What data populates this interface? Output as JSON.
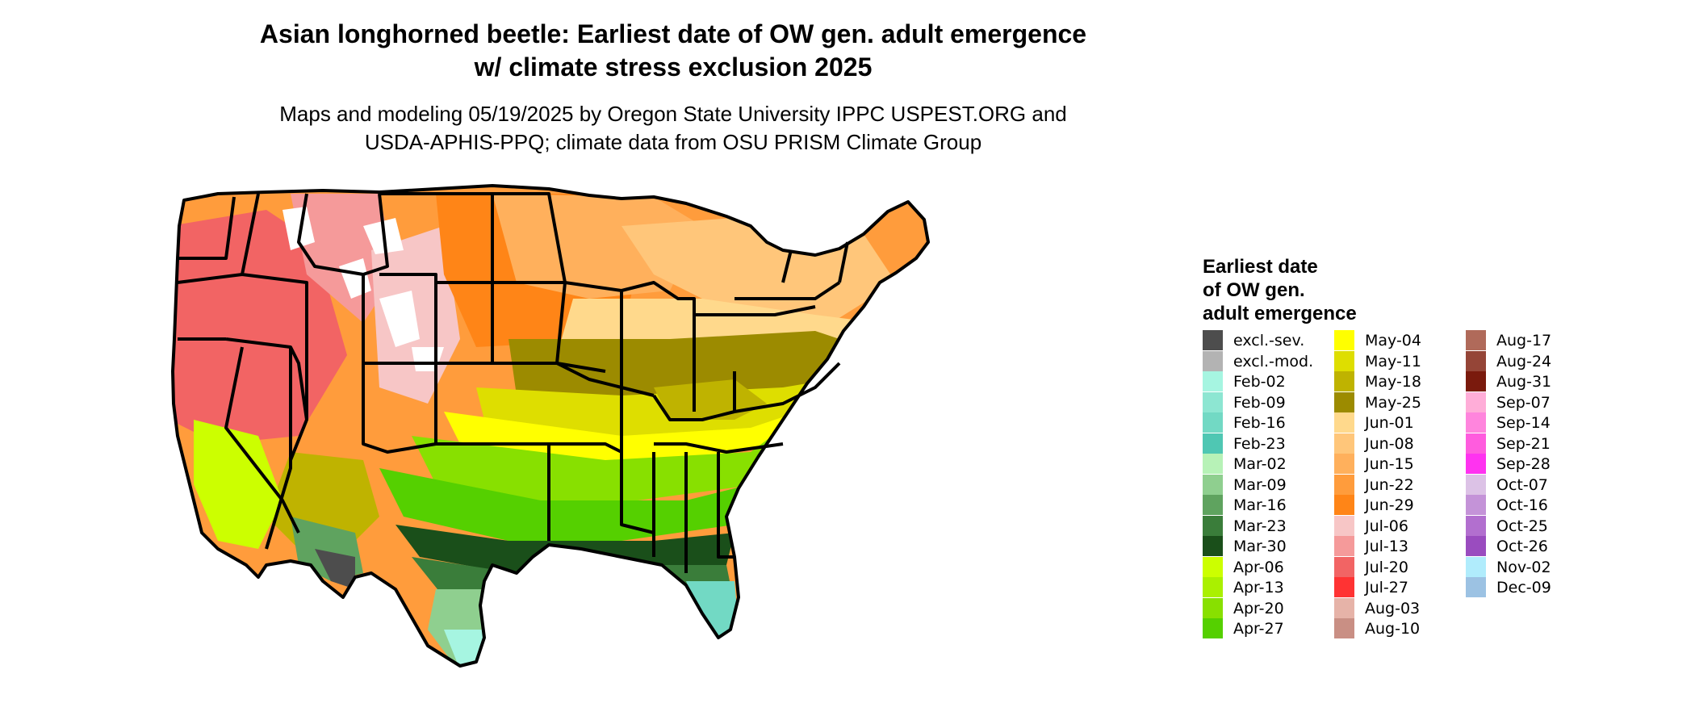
{
  "header": {
    "title_lines": [
      "Asian longhorned beetle: Earliest date of OW gen. adult emergence",
      "w/ climate stress exclusion 2025"
    ],
    "subtitle_lines": [
      "Maps and modeling 05/19/2025 by Oregon State University IPPC USPEST.ORG and",
      "USDA-APHIS-PPQ; climate data from OSU PRISM Climate Group"
    ]
  },
  "legend": {
    "title_lines": [
      "Earliest date",
      "of OW gen.",
      "adult emergence"
    ],
    "columns": [
      [
        {
          "label": "excl.-sev.",
          "color": "#4d4d4d"
        },
        {
          "label": "excl.-mod.",
          "color": "#b3b3b3"
        },
        {
          "label": "Feb-02",
          "color": "#a6f5e1"
        },
        {
          "label": "Feb-09",
          "color": "#8de6d2"
        },
        {
          "label": "Feb-16",
          "color": "#72d9c4"
        },
        {
          "label": "Feb-23",
          "color": "#4fc7b3"
        },
        {
          "label": "Mar-02",
          "color": "#b7f2b7"
        },
        {
          "label": "Mar-09",
          "color": "#8fcf8f"
        },
        {
          "label": "Mar-16",
          "color": "#5fa35f"
        },
        {
          "label": "Mar-23",
          "color": "#3a7d3a"
        },
        {
          "label": "Mar-30",
          "color": "#1a4f1a"
        },
        {
          "label": "Apr-06",
          "color": "#ccff00"
        },
        {
          "label": "Apr-13",
          "color": "#aaf000"
        },
        {
          "label": "Apr-20",
          "color": "#88e000"
        },
        {
          "label": "Apr-27",
          "color": "#55d000"
        }
      ],
      [
        {
          "label": "May-04",
          "color": "#ffff00"
        },
        {
          "label": "May-11",
          "color": "#dede00"
        },
        {
          "label": "May-18",
          "color": "#bfb300"
        },
        {
          "label": "May-25",
          "color": "#9c8b00"
        },
        {
          "label": "Jun-01",
          "color": "#ffd98c"
        },
        {
          "label": "Jun-08",
          "color": "#ffc67a"
        },
        {
          "label": "Jun-15",
          "color": "#ffb05c"
        },
        {
          "label": "Jun-22",
          "color": "#ff9c3c"
        },
        {
          "label": "Jun-29",
          "color": "#ff8517"
        },
        {
          "label": "Jul-06",
          "color": "#f7c6c6"
        },
        {
          "label": "Jul-13",
          "color": "#f59a9a"
        },
        {
          "label": "Jul-20",
          "color": "#f26464"
        },
        {
          "label": "Jul-27",
          "color": "#ff3333"
        },
        {
          "label": "Aug-03",
          "color": "#e6b3a8"
        },
        {
          "label": "Aug-10",
          "color": "#c98f84"
        }
      ],
      [
        {
          "label": "Aug-17",
          "color": "#b06a5a"
        },
        {
          "label": "Aug-24",
          "color": "#954537"
        },
        {
          "label": "Aug-31",
          "color": "#7a1a0d"
        },
        {
          "label": "Sep-07",
          "color": "#ffadd8"
        },
        {
          "label": "Sep-14",
          "color": "#ff85dd"
        },
        {
          "label": "Sep-21",
          "color": "#ff5cde"
        },
        {
          "label": "Sep-28",
          "color": "#ff33f0"
        },
        {
          "label": "Oct-07",
          "color": "#dcc2e6"
        },
        {
          "label": "Oct-16",
          "color": "#c493d8"
        },
        {
          "label": "Oct-25",
          "color": "#b26fcf"
        },
        {
          "label": "Oct-26",
          "color": "#9a4cbf"
        },
        {
          "label": "Nov-02",
          "color": "#b0ecfc"
        },
        {
          "label": "Dec-09",
          "color": "#9cc2e3"
        }
      ]
    ]
  },
  "map_colors": {
    "state_border": "#000000",
    "no_data": "#ffffff"
  }
}
